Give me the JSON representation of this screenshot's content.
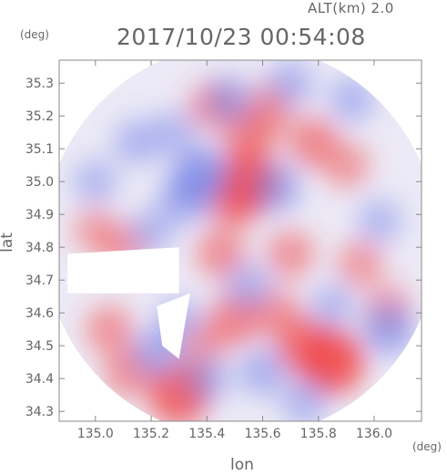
{
  "header": {
    "alt_label": "ALT(km)  2.0",
    "timestamp": "2017/10/23 00:54:08"
  },
  "chart_data": {
    "type": "heatmap",
    "title": "2017/10/23 00:54:08",
    "xlabel": "lon",
    "ylabel": "lat",
    "x_unit": "(deg)",
    "y_unit": "(deg)",
    "xlim": [
      134.87,
      136.17
    ],
    "ylim": [
      34.27,
      35.37
    ],
    "x_ticks": [
      "135.0",
      "135.2",
      "135.4",
      "135.6",
      "135.8",
      "136.0"
    ],
    "y_ticks": [
      "34.3",
      "34.4",
      "34.5",
      "34.6",
      "34.7",
      "34.8",
      "34.9",
      "35.0",
      "35.1",
      "35.2",
      "35.3"
    ],
    "radar_center": {
      "lon": 135.52,
      "lat": 34.82
    },
    "range_radius_deg": 0.6,
    "colormap": {
      "negative": "#6a78e6",
      "zero": "#ffffff",
      "positive": "#f03c3c"
    },
    "cells": [
      {
        "lon": 135.55,
        "lat": 35.0,
        "v": 0.85
      },
      {
        "lon": 135.5,
        "lat": 34.94,
        "v": 0.6
      },
      {
        "lon": 135.55,
        "lat": 35.13,
        "v": 0.55
      },
      {
        "lon": 135.42,
        "lat": 35.23,
        "v": 0.4
      },
      {
        "lon": 135.62,
        "lat": 35.22,
        "v": 0.45
      },
      {
        "lon": 135.78,
        "lat": 35.12,
        "v": 0.5
      },
      {
        "lon": 135.9,
        "lat": 35.05,
        "v": 0.35
      },
      {
        "lon": 135.45,
        "lat": 34.78,
        "v": 0.45
      },
      {
        "lon": 135.7,
        "lat": 34.78,
        "v": 0.4
      },
      {
        "lon": 135.95,
        "lat": 34.75,
        "v": 0.35
      },
      {
        "lon": 135.1,
        "lat": 34.8,
        "v": 0.35
      },
      {
        "lon": 135.0,
        "lat": 34.85,
        "v": 0.3
      },
      {
        "lon": 135.85,
        "lat": 34.45,
        "v": 0.95
      },
      {
        "lon": 135.75,
        "lat": 34.5,
        "v": 0.7
      },
      {
        "lon": 135.5,
        "lat": 34.58,
        "v": 0.55
      },
      {
        "lon": 135.3,
        "lat": 34.35,
        "v": 0.85
      },
      {
        "lon": 135.12,
        "lat": 34.42,
        "v": 0.45
      },
      {
        "lon": 135.05,
        "lat": 34.55,
        "v": 0.4
      },
      {
        "lon": 135.65,
        "lat": 34.6,
        "v": 0.4
      },
      {
        "lon": 136.05,
        "lat": 34.62,
        "v": 0.3
      },
      {
        "lon": 135.38,
        "lat": 34.5,
        "v": 0.35
      },
      {
        "lon": 135.15,
        "lat": 35.12,
        "v": -0.35
      },
      {
        "lon": 135.0,
        "lat": 35.0,
        "v": -0.3
      },
      {
        "lon": 135.38,
        "lat": 35.02,
        "v": -0.7
      },
      {
        "lon": 135.32,
        "lat": 34.95,
        "v": -0.5
      },
      {
        "lon": 135.65,
        "lat": 34.98,
        "v": -0.45
      },
      {
        "lon": 135.48,
        "lat": 35.25,
        "v": -0.4
      },
      {
        "lon": 135.28,
        "lat": 35.15,
        "v": -0.3
      },
      {
        "lon": 135.7,
        "lat": 35.3,
        "v": -0.35
      },
      {
        "lon": 135.92,
        "lat": 35.25,
        "v": -0.35
      },
      {
        "lon": 136.02,
        "lat": 34.88,
        "v": -0.3
      },
      {
        "lon": 136.05,
        "lat": 34.55,
        "v": -0.55
      },
      {
        "lon": 135.6,
        "lat": 34.42,
        "v": -0.4
      },
      {
        "lon": 135.4,
        "lat": 34.4,
        "v": -0.35
      },
      {
        "lon": 135.22,
        "lat": 34.48,
        "v": -0.45
      },
      {
        "lon": 135.3,
        "lat": 34.58,
        "v": -0.3
      },
      {
        "lon": 135.55,
        "lat": 34.68,
        "v": -0.35
      },
      {
        "lon": 135.85,
        "lat": 34.62,
        "v": -0.3
      },
      {
        "lon": 135.75,
        "lat": 34.33,
        "v": -0.35
      },
      {
        "lon": 135.2,
        "lat": 34.85,
        "v": -0.3
      }
    ]
  }
}
